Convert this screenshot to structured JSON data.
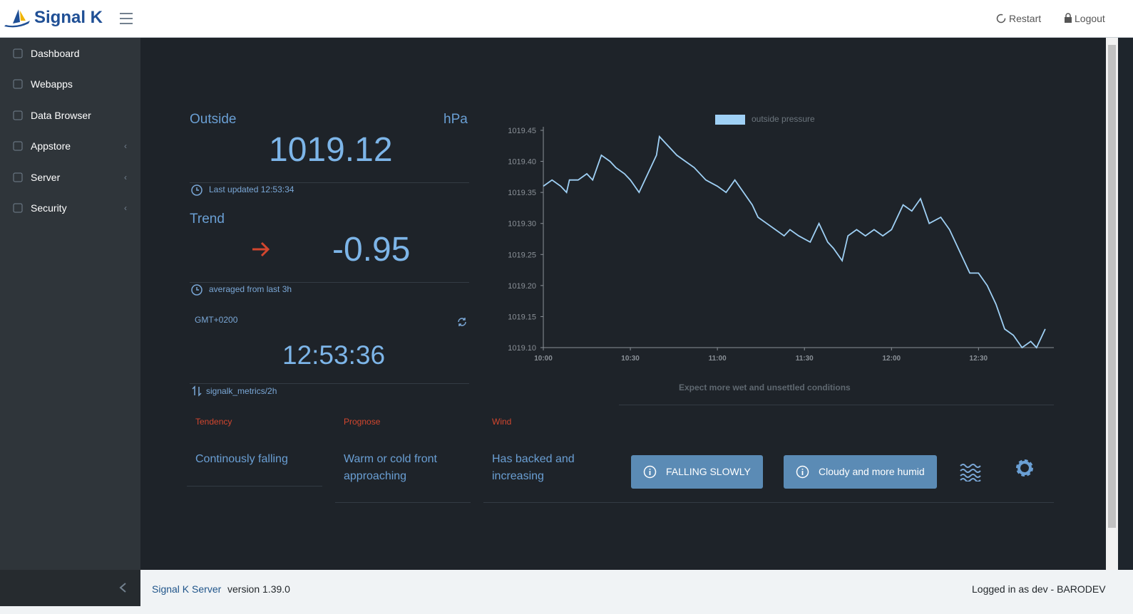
{
  "header": {
    "brand": "Signal K",
    "actions": [
      "Restart",
      "Logout"
    ]
  },
  "sidebar": {
    "items": [
      "Dashboard",
      "Webapps",
      "Data Browser",
      "Appstore",
      "Server",
      "Security"
    ]
  },
  "widgets": {
    "pressure": {
      "label": "Outside",
      "unit": "hPa",
      "value": "1019.12",
      "updated": "Last updated 12:53:34"
    },
    "trend": {
      "label": "Trend",
      "value": "-0.95",
      "note": "averaged from last 3h"
    },
    "clock": {
      "zone": "GMT+0200",
      "time": "12:53:36",
      "source": "signalk_metrics/2h"
    }
  },
  "chart_data": {
    "type": "line",
    "x": [
      "10:00",
      "10:03",
      "10:06",
      "10:08",
      "10:09",
      "10:12",
      "10:15",
      "10:17",
      "10:20",
      "10:23",
      "10:25",
      "10:28",
      "10:30",
      "10:33",
      "10:36",
      "10:39",
      "10:40",
      "10:44",
      "10:46",
      "10:49",
      "10:52",
      "10:56",
      "11:00",
      "11:03",
      "11:06",
      "11:09",
      "11:12",
      "11:14",
      "11:17",
      "11:20",
      "11:23",
      "11:25",
      "11:28",
      "11:32",
      "11:35",
      "11:38",
      "11:40",
      "11:43",
      "11:45",
      "11:48",
      "11:51",
      "11:54",
      "11:57",
      "12:00",
      "12:04",
      "12:07",
      "12:10",
      "12:13",
      "12:17",
      "12:20",
      "12:24",
      "12:27",
      "12:30",
      "12:33",
      "12:36",
      "12:39",
      "12:42",
      "12:45",
      "12:48",
      "12:50",
      "12:53"
    ],
    "series": [
      {
        "name": "outside pressure",
        "color": "#9fd0f5",
        "values": [
          1019.36,
          1019.37,
          1019.36,
          1019.35,
          1019.37,
          1019.37,
          1019.38,
          1019.37,
          1019.41,
          1019.4,
          1019.39,
          1019.38,
          1019.37,
          1019.35,
          1019.38,
          1019.41,
          1019.44,
          1019.42,
          1019.41,
          1019.4,
          1019.39,
          1019.37,
          1019.36,
          1019.35,
          1019.37,
          1019.35,
          1019.33,
          1019.31,
          1019.3,
          1019.29,
          1019.28,
          1019.29,
          1019.28,
          1019.27,
          1019.3,
          1019.27,
          1019.26,
          1019.24,
          1019.28,
          1019.29,
          1019.28,
          1019.29,
          1019.28,
          1019.29,
          1019.33,
          1019.32,
          1019.34,
          1019.3,
          1019.31,
          1019.29,
          1019.25,
          1019.22,
          1019.22,
          1019.2,
          1019.17,
          1019.13,
          1019.12,
          1019.1,
          1019.11,
          1019.1,
          1019.13
        ]
      }
    ],
    "xlim": [
      "10:00",
      "12:54"
    ],
    "xticks": [
      "10:00",
      "10:30",
      "11:00",
      "11:30",
      "12:00",
      "12:30"
    ],
    "ylim": [
      1019.1,
      1019.45
    ],
    "yticks": [
      {
        "value": 1019.1,
        "label": "1019.10"
      },
      1019.15,
      {
        "value": 1019.2,
        "label": "1019.20"
      },
      1019.25,
      {
        "value": 1019.3,
        "label": "1019.30"
      },
      1019.35,
      {
        "value": 1019.4,
        "label": "1019.40"
      },
      1019.45
    ]
  },
  "forecast": {
    "summary": "Expect more wet and unsettled conditions",
    "cards": [
      {
        "title": "Tendency",
        "text": "Continously falling"
      },
      {
        "title": "Prognose",
        "text": "Warm or cold front approaching"
      },
      {
        "title": "Wind",
        "text": "Has backed and increasing"
      }
    ],
    "buttons": [
      "FALLING SLOWLY",
      "Cloudy and more humid"
    ]
  },
  "footer": {
    "app": "Signal K Server",
    "version": "version 1.39.0",
    "user": "Logged in as dev - BARODEV"
  }
}
